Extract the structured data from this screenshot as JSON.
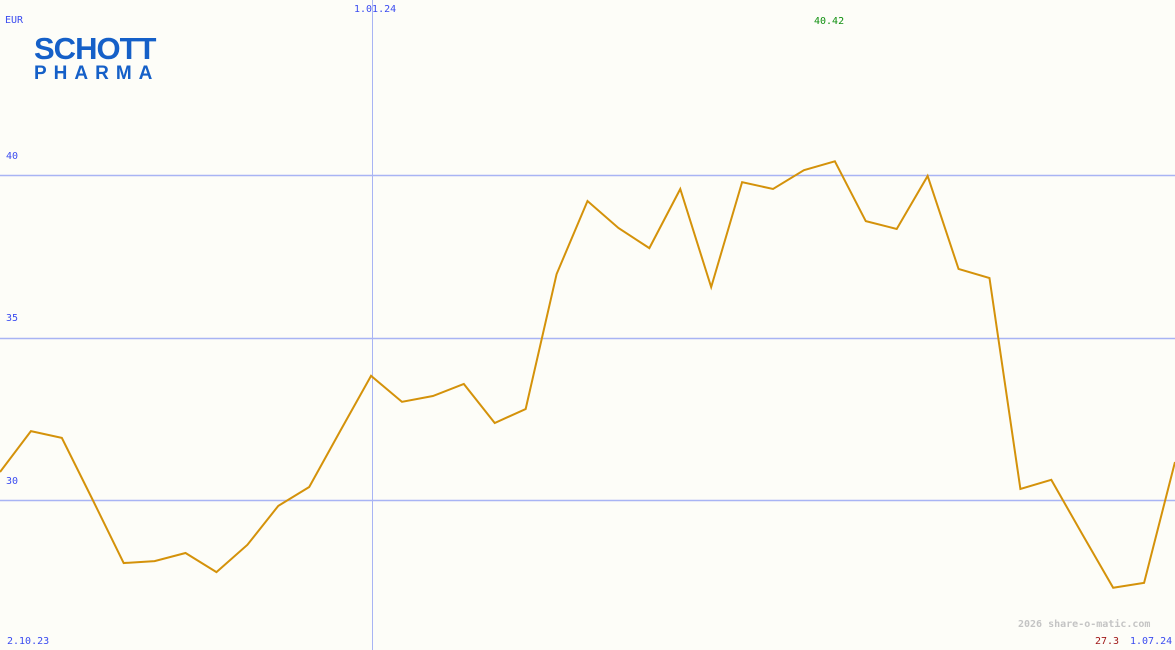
{
  "currency": "EUR",
  "logo": {
    "line1": "SCHOTT",
    "line2": "PHARMA"
  },
  "watermark": "2026 share-o-matic.com",
  "colors": {
    "line": "#d4920a",
    "grid": "#a8b4f4",
    "max": "#109010",
    "min": "#a01818",
    "axis_text": "#3b4cf0"
  },
  "chart_data": {
    "type": "line",
    "title": "",
    "ylim": [
      25,
      45
    ],
    "yticks": [
      30,
      35,
      40
    ],
    "ytick_labels": [
      "30",
      "35",
      "40"
    ],
    "x_start": "2.10.23",
    "x_end": "1.07.24",
    "x_mid": "1.01.24",
    "max_label": "40.42",
    "min_label": "27.3",
    "grid": true,
    "values": [
      30.86,
      32.12,
      31.91,
      30.0,
      28.06,
      28.12,
      28.37,
      27.78,
      28.62,
      29.82,
      30.4,
      32.12,
      33.82,
      33.02,
      33.2,
      33.57,
      32.37,
      32.8,
      36.95,
      39.2,
      38.37,
      37.75,
      39.57,
      36.55,
      39.78,
      39.57,
      40.15,
      40.42,
      38.58,
      38.34,
      39.97,
      37.11,
      36.83,
      30.34,
      30.62,
      28.95,
      27.3,
      27.45,
      31.17
    ]
  }
}
